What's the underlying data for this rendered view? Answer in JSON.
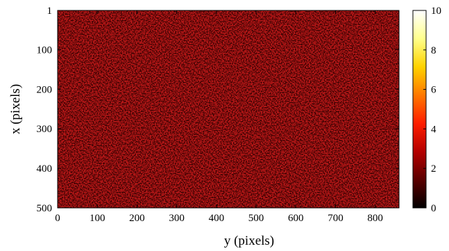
{
  "chart_data": {
    "type": "heatmap",
    "title": "",
    "xlabel": "y (pixels)",
    "ylabel": "x (pixels)",
    "x_range": [
      0,
      860
    ],
    "y_range": [
      1,
      500
    ],
    "x_ticks": [
      "0",
      "100",
      "200",
      "300",
      "400",
      "500",
      "600",
      "700",
      "800"
    ],
    "y_ticks": [
      "1",
      "100",
      "200",
      "300",
      "400",
      "500"
    ],
    "colorbar": {
      "range": [
        0,
        10
      ],
      "ticks": [
        "0",
        "2",
        "4",
        "6",
        "8",
        "10"
      ],
      "colormap": "hot",
      "colors": [
        "#000000",
        "#5a0000",
        "#b40000",
        "#ff1e00",
        "#ff7800",
        "#ffd200",
        "#ffff8c",
        "#ffffff"
      ]
    },
    "description_of_values": "noise-like field with values mostly in 0–3 range (dark red texture)",
    "typical_value_range": [
      0,
      3
    ]
  }
}
